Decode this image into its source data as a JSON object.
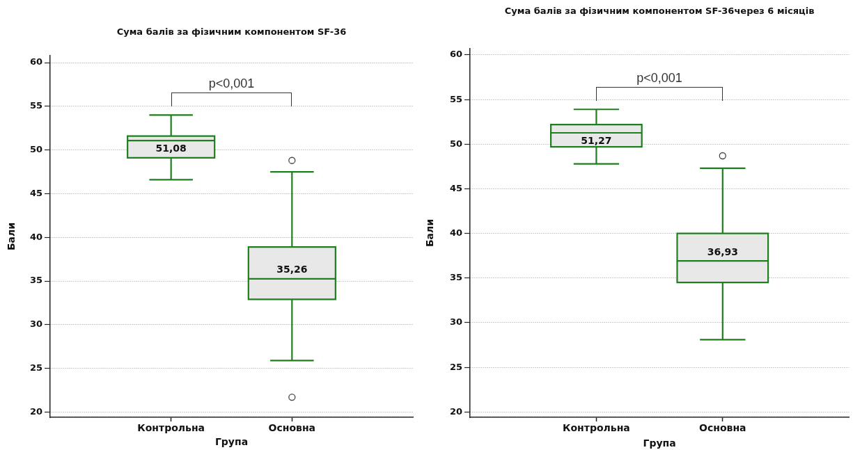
{
  "chart_data": [
    {
      "type": "box",
      "title": "Сума балів за фізичним компонентом SF-36",
      "xlabel": "Група",
      "ylabel": "Бали",
      "categories": [
        "Контрольна",
        "Основна"
      ],
      "color": "#1f7f1f",
      "boxes": [
        {
          "low": 46.6,
          "q1": 49.1,
          "median": 51.08,
          "q3": 51.6,
          "high": 54.0
        },
        {
          "low": 25.9,
          "q1": 32.9,
          "median": 35.26,
          "q3": 38.9,
          "high": 47.5,
          "outliers": [
            48.8,
            21.7
          ]
        }
      ],
      "value_labels": [
        "51,08",
        "35,26"
      ],
      "ylim": [
        19.4,
        60.8
      ],
      "yticks": [
        20,
        25,
        30,
        35,
        40,
        45,
        50,
        55,
        60
      ],
      "grid": "y",
      "annotations": [
        "p<0,001"
      ]
    },
    {
      "type": "box",
      "title": "Сума балів за фізичним компонентом SF-36через 6 місяців",
      "xlabel": "Група",
      "ylabel": "Бали",
      "categories": [
        "Контрольна",
        "Основна"
      ],
      "color": "#1f7f1f",
      "boxes": [
        {
          "low": 47.8,
          "q1": 49.7,
          "median": 51.27,
          "q3": 52.2,
          "high": 53.9
        },
        {
          "low": 28.1,
          "q1": 34.5,
          "median": 36.93,
          "q3": 40.0,
          "high": 47.3,
          "outliers": [
            48.7
          ]
        }
      ],
      "value_labels": [
        "51,27",
        "36,93"
      ],
      "ylim": [
        19.4,
        60.7
      ],
      "yticks": [
        20,
        25,
        30,
        35,
        40,
        45,
        50,
        55,
        60
      ],
      "grid": "y",
      "annotations": [
        "p<0,001"
      ]
    }
  ]
}
